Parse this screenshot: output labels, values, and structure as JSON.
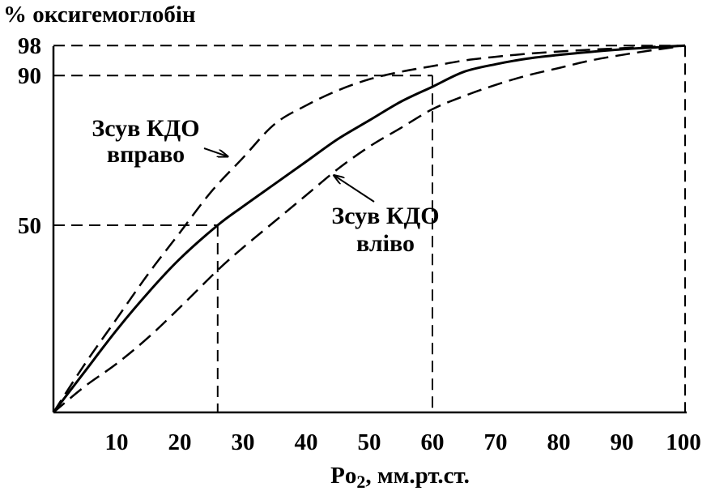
{
  "chart_data": {
    "type": "line",
    "title": "",
    "ylabel": "% оксигемоглобін",
    "xlabel": {
      "prefix": "Po",
      "subscript": "2",
      "suffix": ", мм.рт.ст."
    },
    "xlim": [
      0,
      100
    ],
    "ylim": [
      0,
      100
    ],
    "x_ticks": [
      {
        "value": 10,
        "label": "10"
      },
      {
        "value": 20,
        "label": "20"
      },
      {
        "value": 30,
        "label": "30"
      },
      {
        "value": 40,
        "label": "40"
      },
      {
        "value": 50,
        "label": "50"
      },
      {
        "value": 60,
        "label": "60"
      },
      {
        "value": 70,
        "label": "70"
      },
      {
        "value": 80,
        "label": "80"
      },
      {
        "value": 90,
        "label": "90"
      },
      {
        "value": 100,
        "label": "100"
      }
    ],
    "y_ticks": [
      {
        "value": 98,
        "label": "98"
      },
      {
        "value": 90,
        "label": "90"
      },
      {
        "value": 50,
        "label": "50"
      }
    ],
    "grid": false,
    "reference_lines": [
      {
        "x": 26,
        "y": 50
      },
      {
        "x": 60,
        "y": 90
      },
      {
        "x": 100,
        "y": 98
      }
    ],
    "series": [
      {
        "style": "solid",
        "x": [
          0,
          5,
          10,
          15,
          20,
          26,
          30,
          35,
          40,
          45,
          50,
          55,
          60,
          65,
          70,
          75,
          80,
          85,
          90,
          95,
          100
        ],
        "y": [
          0,
          11,
          22,
          32,
          41,
          50,
          55,
          61,
          67,
          73,
          78,
          83,
          87,
          91,
          93,
          94.5,
          95.5,
          96.3,
          97,
          97.5,
          98
        ]
      },
      {
        "style": "dashed",
        "x": [
          0,
          5,
          10,
          15,
          20,
          25,
          30,
          35,
          40,
          45,
          50,
          55,
          60,
          65,
          70,
          75,
          80,
          85,
          90,
          95,
          100
        ],
        "y": [
          0,
          13,
          25,
          37,
          48,
          59,
          68,
          77,
          82,
          86,
          89,
          91,
          92.5,
          94,
          95,
          95.8,
          96.4,
          96.9,
          97.3,
          97.7,
          98
        ]
      },
      {
        "style": "dashed",
        "x": [
          0,
          5,
          10,
          15,
          20,
          26,
          30,
          35,
          40,
          45,
          50,
          55,
          60,
          65,
          70,
          75,
          80,
          85,
          90,
          95,
          100
        ],
        "y": [
          0,
          7,
          13,
          20,
          28,
          38,
          44,
          51,
          58,
          65,
          71,
          76,
          81,
          84.5,
          87.5,
          90,
          92,
          94,
          95.5,
          96.8,
          98
        ]
      }
    ],
    "annotations": [
      {
        "id": "shift-right",
        "lines": [
          "Зсув КДО",
          "вправо"
        ],
        "arrow_to": {
          "x": 28,
          "y": 69
        }
      },
      {
        "id": "shift-left",
        "lines": [
          "Зсув КДО",
          "вліво"
        ],
        "arrow_to": {
          "x": 44,
          "y": 64
        }
      }
    ]
  }
}
